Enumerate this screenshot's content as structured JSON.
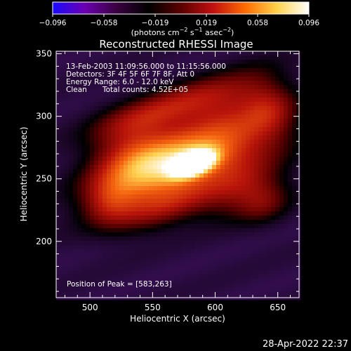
{
  "colorbar": {
    "tick_labels": [
      "−0.096",
      "−0.058",
      "−0.019",
      "0.019",
      "0.058",
      "0.096"
    ],
    "range": [
      -0.096,
      0.096
    ],
    "units_prefix": "(photons cm",
    "units_exp1": "−2",
    "units_mid": " s",
    "units_exp2": "−1",
    "units_mid2": " asec",
    "units_exp3": "−2",
    "units_suffix": ")",
    "colors": [
      "#1a0aff",
      "#6a00b0",
      "#3a0040",
      "#000000",
      "#5a0000",
      "#c01010",
      "#ff6a00",
      "#ffd24a",
      "#ffffff"
    ]
  },
  "chart_data": {
    "type": "heatmap",
    "title": "Reconstructed RHESSI Image",
    "xlabel": "Heliocentric X (arcsec)",
    "ylabel": "Heliocentric Y (arcsec)",
    "xlim": [
      473,
      667
    ],
    "ylim": [
      155,
      352
    ],
    "x_ticks": [
      500,
      550,
      600,
      650
    ],
    "y_ticks": [
      200,
      250,
      300,
      350
    ],
    "peak": [
      583,
      263
    ],
    "annotations": {
      "time": "13-Feb-2003 11:09:56.000 to 11:15:56.000",
      "detectors": "Detectors: 3F 4F 5F 6F 7F 8F, Att 0",
      "energy": "Energy Range: 6.0 - 12.0 keV",
      "clean_label": "Clean",
      "counts": "Total counts: 4.52E+05",
      "peak_text": "Position of Peak = [583,263]"
    },
    "sources": [
      {
        "x": 583,
        "y": 262,
        "intensity": 1.0,
        "sx": 12,
        "sy": 6
      },
      {
        "x": 571,
        "y": 266,
        "intensity": 0.55,
        "sx": 36,
        "sy": 17
      },
      {
        "x": 545,
        "y": 250,
        "intensity": 0.5,
        "sx": 40,
        "sy": 15
      },
      {
        "x": 530,
        "y": 275,
        "intensity": 0.45,
        "sx": 26,
        "sy": 20
      },
      {
        "x": 620,
        "y": 280,
        "intensity": 0.45,
        "sx": 30,
        "sy": 20
      },
      {
        "x": 605,
        "y": 315,
        "intensity": 0.4,
        "sx": 34,
        "sy": 14
      },
      {
        "x": 560,
        "y": 225,
        "intensity": 0.42,
        "sx": 30,
        "sy": 11
      },
      {
        "x": 620,
        "y": 240,
        "intensity": 0.4,
        "sx": 26,
        "sy": 14
      },
      {
        "x": 555,
        "y": 305,
        "intensity": 0.38,
        "sx": 34,
        "sy": 11
      },
      {
        "x": 645,
        "y": 305,
        "intensity": 0.33,
        "sx": 16,
        "sy": 18
      },
      {
        "x": 515,
        "y": 230,
        "intensity": 0.3,
        "sx": 16,
        "sy": 14
      },
      {
        "x": 640,
        "y": 230,
        "intensity": 0.28,
        "sx": 16,
        "sy": 12
      }
    ]
  },
  "footer": {
    "timestamp": "28-Apr-2022 22:37"
  }
}
